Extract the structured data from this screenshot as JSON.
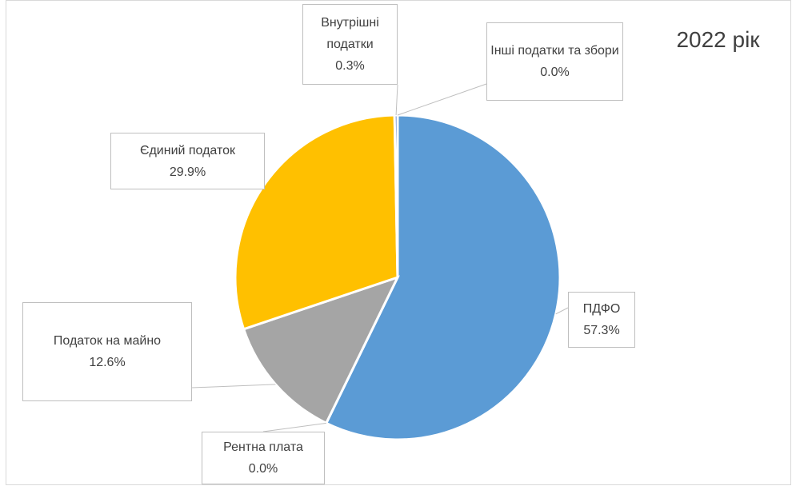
{
  "chart_data": {
    "type": "pie",
    "title": "2022 рік",
    "categories": [
      "ПДФО",
      "Рентна плата",
      "Податок на майно",
      "Єдиний податок",
      "Внутрішні податки",
      "Інші податки та збори"
    ],
    "values": [
      57.3,
      0.0,
      12.6,
      29.9,
      0.3,
      0.0
    ],
    "value_labels": [
      "57.3%",
      "0.0%",
      "12.6%",
      "29.9%",
      "0.3%",
      "0.0%"
    ],
    "colors": [
      "#5b9bd5",
      "#ed7d31",
      "#a5a5a5",
      "#ffc000",
      "#4472c4",
      "#70ad47"
    ]
  }
}
